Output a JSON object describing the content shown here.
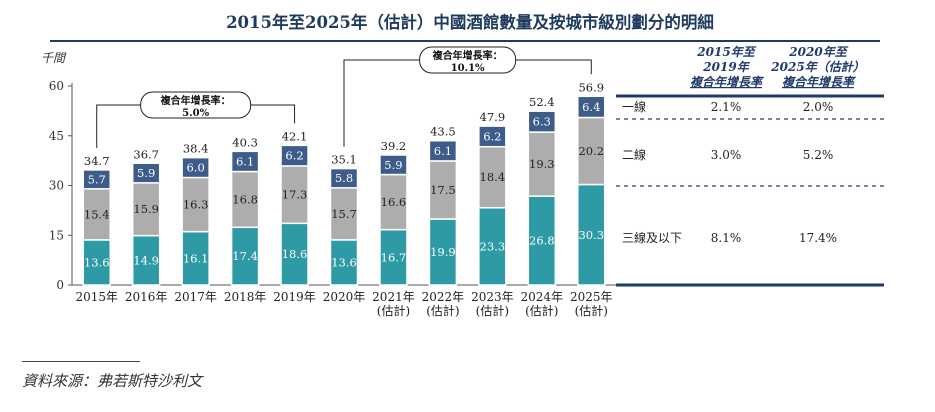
{
  "chart_data": {
    "type": "bar",
    "stacked": true,
    "title": "2015年至2025年（估計）中國酒館數量及按城市級別劃分的明細",
    "ylabel": "千間",
    "ylim": [
      0,
      60
    ],
    "yticks": [
      "0",
      "15",
      "30",
      "45",
      "60"
    ],
    "categories": [
      [
        "2015年"
      ],
      [
        "2016年"
      ],
      [
        "2017年"
      ],
      [
        "2018年"
      ],
      [
        "2019年"
      ],
      [
        "2020年"
      ],
      [
        "2021年",
        "(估計)"
      ],
      [
        "2022年",
        "(估計)"
      ],
      [
        "2023年",
        "(估計)"
      ],
      [
        "2024年",
        "(估計)"
      ],
      [
        "2025年",
        "(估計)"
      ]
    ],
    "totals": [
      "34.7",
      "36.7",
      "38.4",
      "40.3",
      "42.1",
      "35.1",
      "39.2",
      "43.5",
      "47.9",
      "52.4",
      "56.9"
    ],
    "series": [
      {
        "name": "三線及以下",
        "color": "#2e9aa6",
        "values": [
          13.6,
          14.9,
          16.1,
          17.4,
          18.6,
          13.6,
          16.7,
          19.9,
          23.3,
          26.8,
          30.3
        ],
        "labels": [
          "13.6",
          "14.9",
          "16.1",
          "17.4",
          "18.6",
          "13.6",
          "16.7",
          "19.9",
          "23.3",
          "26.8",
          "30.3"
        ]
      },
      {
        "name": "二線",
        "color": "#adadad",
        "values": [
          15.4,
          15.9,
          16.3,
          16.8,
          17.3,
          15.7,
          16.6,
          17.5,
          18.4,
          19.3,
          20.2
        ],
        "labels": [
          "15.4",
          "15.9",
          "16.3",
          "16.8",
          "17.3",
          "15.7",
          "16.6",
          "17.5",
          "18.4",
          "19.3",
          "20.2"
        ]
      },
      {
        "name": "一線",
        "color": "#3e5c8a",
        "values": [
          5.7,
          5.9,
          6.0,
          6.1,
          6.2,
          5.8,
          5.9,
          6.1,
          6.2,
          6.3,
          6.4
        ],
        "labels": [
          "5.7",
          "5.9",
          "6.0",
          "6.1",
          "6.2",
          "5.8",
          "5.9",
          "6.1",
          "6.2",
          "6.3",
          "6.4"
        ]
      }
    ],
    "callouts": [
      {
        "label": "複合年增長率：",
        "value": "5.0%",
        "from": 0,
        "to": 4
      },
      {
        "label": "複合年增長率：",
        "value": "10.1%",
        "from": 5,
        "to": 10
      }
    ],
    "cagr_table": {
      "headers": [
        [
          "2015年至",
          "2019年",
          "複合年增長率"
        ],
        [
          "2020年至",
          "2025年（估計）",
          "複合年增長率"
        ]
      ],
      "rows": [
        {
          "tier": "一線",
          "a": "2.1%",
          "b": "2.0%"
        },
        {
          "tier": "二線",
          "a": "3.0%",
          "b": "5.2%"
        },
        {
          "tier": "三線及以下",
          "a": "8.1%",
          "b": "17.4%"
        }
      ]
    }
  },
  "source_text": "資料來源：弗若斯特沙利文"
}
